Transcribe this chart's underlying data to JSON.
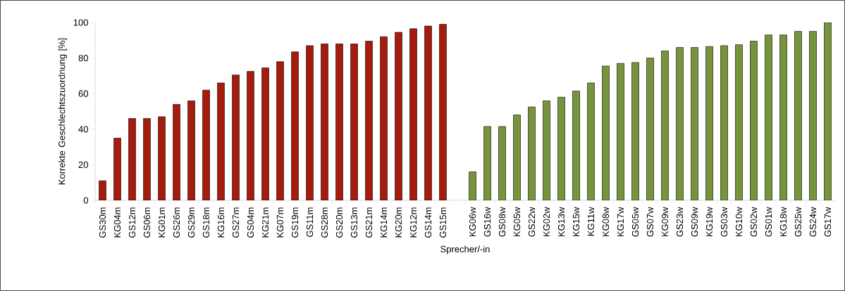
{
  "chart_data": {
    "type": "bar",
    "ylabel": "Korrekte Geschlechtszuordnung [%]",
    "xlabel": "Sprecher/-in",
    "categories": [
      "GS30m",
      "KG04m",
      "GS12m",
      "GS06m",
      "KG01m",
      "GS26m",
      "GS29m",
      "GS18m",
      "KG16m",
      "GS27m",
      "GS04m",
      "KG21m",
      "KG07m",
      "GS19m",
      "GS11m",
      "GS28m",
      "GS20m",
      "GS13m",
      "GS21m",
      "KG14m",
      "KG20m",
      "KG12m",
      "GS14m",
      "GS15m",
      null,
      "KG06w",
      "GS16w",
      "GS08w",
      "KG05w",
      "GS22w",
      "KG02w",
      "KG13w",
      "KG15w",
      "KG11w",
      "KG08w",
      "KG17w",
      "GS05w",
      "GS07w",
      "KG09w",
      "GS23w",
      "GS09w",
      "KG19w",
      "GS03w",
      "KG10w",
      "GS02w",
      "GS01w",
      "KG18w",
      "GS25w",
      "GS24w",
      "GS17w"
    ],
    "values": [
      11,
      35,
      46,
      46,
      47,
      54,
      56,
      62,
      66,
      70.5,
      72.5,
      74.5,
      78,
      83.5,
      87,
      88,
      88,
      88,
      89.5,
      92,
      94.5,
      96.5,
      98,
      99,
      null,
      16,
      41.5,
      41.5,
      48,
      52.5,
      56,
      58,
      61.5,
      66,
      75.5,
      77,
      77.5,
      80,
      84,
      86,
      86,
      86.5,
      87,
      87.5,
      89.5,
      93,
      93,
      95,
      95,
      100
    ],
    "colors": [
      "#a51c0e",
      "#a51c0e",
      "#a51c0e",
      "#a51c0e",
      "#a51c0e",
      "#a51c0e",
      "#a51c0e",
      "#a51c0e",
      "#a51c0e",
      "#a51c0e",
      "#a51c0e",
      "#a51c0e",
      "#a51c0e",
      "#a51c0e",
      "#a51c0e",
      "#a51c0e",
      "#a51c0e",
      "#a51c0e",
      "#a51c0e",
      "#a51c0e",
      "#a51c0e",
      "#a51c0e",
      "#a51c0e",
      "#a51c0e",
      null,
      "#77933c",
      "#77933c",
      "#77933c",
      "#77933c",
      "#77933c",
      "#77933c",
      "#77933c",
      "#77933c",
      "#77933c",
      "#77933c",
      "#77933c",
      "#77933c",
      "#77933c",
      "#77933c",
      "#77933c",
      "#77933c",
      "#77933c",
      "#77933c",
      "#77933c",
      "#77933c",
      "#77933c",
      "#77933c",
      "#77933c",
      "#77933c",
      "#77933c"
    ],
    "ylim": [
      0,
      100
    ],
    "yticks": [
      0,
      20,
      40,
      60,
      80,
      100
    ]
  }
}
